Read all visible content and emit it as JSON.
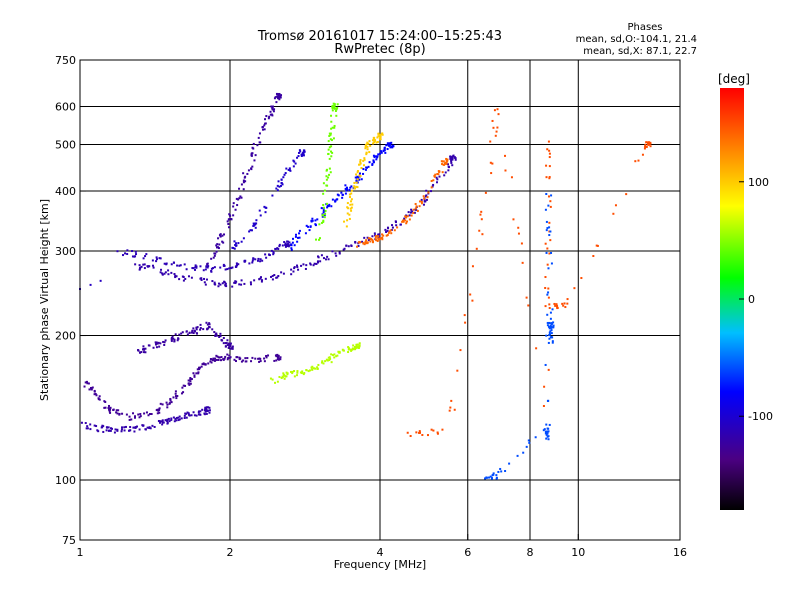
{
  "chart_data": {
    "type": "scatter",
    "title": "Tromsø 20161017 15:24:00–15:25:43",
    "subtitle": "RwPretec (8p)",
    "xlabel": "Frequency [MHz]",
    "ylabel": "Stationary phase Virtual Height [km]",
    "x_scale": "log",
    "y_scale": "log",
    "xlim": [
      1,
      16
    ],
    "ylim": [
      75,
      750
    ],
    "x_ticks": [
      1,
      2,
      4,
      6,
      8,
      10,
      16
    ],
    "y_ticks": [
      75,
      100,
      200,
      300,
      400,
      500,
      600,
      750
    ],
    "x_grid": [
      2,
      4,
      6,
      8,
      10
    ],
    "y_grid": [
      100,
      200,
      300,
      400,
      500,
      600
    ],
    "grid": true,
    "colorbar": {
      "label": "[deg]",
      "range": [
        -180,
        180
      ],
      "ticks": [
        100,
        0,
        -100
      ]
    },
    "phases": {
      "title": "Phases",
      "line_o": "mean, sd,O:-104.1, 21.4",
      "line_x": "mean, sd,X:  87.1, 22.7"
    },
    "series": [
      {
        "trace": [
          [
            1.02,
            130
          ],
          [
            1.1,
            128
          ],
          [
            1.2,
            127
          ],
          [
            1.3,
            128
          ],
          [
            1.4,
            130
          ],
          [
            1.5,
            133
          ],
          [
            1.6,
            135
          ],
          [
            1.7,
            137
          ],
          [
            1.8,
            140
          ]
        ],
        "phase": -120
      },
      {
        "trace": [
          [
            1.02,
            160
          ],
          [
            1.08,
            150
          ],
          [
            1.15,
            140
          ],
          [
            1.25,
            135
          ],
          [
            1.4,
            138
          ],
          [
            1.5,
            145
          ],
          [
            1.6,
            155
          ],
          [
            1.7,
            165
          ],
          [
            1.8,
            175
          ],
          [
            1.9,
            180
          ],
          [
            2.0,
            180
          ],
          [
            2.2,
            178
          ],
          [
            2.5,
            180
          ]
        ],
        "phase": -130
      },
      {
        "trace": [
          [
            1.3,
            185
          ],
          [
            1.4,
            190
          ],
          [
            1.5,
            195
          ],
          [
            1.6,
            200
          ],
          [
            1.7,
            205
          ],
          [
            1.8,
            210
          ],
          [
            1.9,
            200
          ],
          [
            2.0,
            190
          ]
        ],
        "phase": -125
      },
      {
        "trace": [
          [
            1.3,
            280
          ],
          [
            1.4,
            275
          ],
          [
            1.6,
            265
          ],
          [
            1.8,
            258
          ],
          [
            2.0,
            255
          ],
          [
            2.3,
            262
          ],
          [
            2.6,
            270
          ],
          [
            2.9,
            282
          ],
          [
            3.2,
            295
          ],
          [
            3.6,
            310
          ],
          [
            4.0,
            325
          ],
          [
            4.4,
            345
          ],
          [
            4.8,
            375
          ],
          [
            5.2,
            420
          ],
          [
            5.6,
            470
          ]
        ],
        "phase": -120
      },
      {
        "trace": [
          [
            1.2,
            300
          ],
          [
            1.4,
            290
          ],
          [
            1.6,
            280
          ],
          [
            1.8,
            275
          ],
          [
            2.0,
            278
          ],
          [
            2.2,
            285
          ],
          [
            2.4,
            295
          ],
          [
            2.6,
            310
          ]
        ],
        "phase": -115
      },
      {
        "trace": [
          [
            1.8,
            280
          ],
          [
            1.9,
            310
          ],
          [
            2.0,
            350
          ],
          [
            2.1,
            400
          ],
          [
            2.2,
            460
          ],
          [
            2.3,
            520
          ],
          [
            2.4,
            580
          ],
          [
            2.5,
            630
          ]
        ],
        "phase": -125
      },
      {
        "trace": [
          [
            2.0,
            300
          ],
          [
            2.2,
            330
          ],
          [
            2.4,
            380
          ],
          [
            2.6,
            440
          ],
          [
            2.8,
            480
          ]
        ],
        "phase": -105
      },
      {
        "trace": [
          [
            2.6,
            300
          ],
          [
            2.8,
            330
          ],
          [
            3.0,
            350
          ],
          [
            3.2,
            380
          ],
          [
            3.4,
            400
          ],
          [
            3.6,
            420
          ],
          [
            3.8,
            450
          ],
          [
            4.0,
            480
          ],
          [
            4.2,
            500
          ]
        ],
        "phase": -80
      },
      {
        "trace": [
          [
            3.0,
            310
          ],
          [
            3.1,
            380
          ],
          [
            3.15,
            450
          ],
          [
            3.2,
            520
          ],
          [
            3.25,
            600
          ]
        ],
        "phase": 40
      },
      {
        "trace": [
          [
            3.4,
            330
          ],
          [
            3.5,
            380
          ],
          [
            3.6,
            430
          ],
          [
            3.7,
            470
          ],
          [
            3.8,
            500
          ],
          [
            4.0,
            520
          ]
        ],
        "phase": 100
      },
      {
        "trace": [
          [
            3.6,
            310
          ],
          [
            3.8,
            315
          ],
          [
            4.0,
            320
          ],
          [
            4.3,
            335
          ],
          [
            4.6,
            355
          ],
          [
            5.0,
            400
          ],
          [
            5.4,
            460
          ]
        ],
        "phase": 140
      },
      {
        "trace": [
          [
            2.4,
            160
          ],
          [
            2.6,
            165
          ],
          [
            2.8,
            168
          ],
          [
            3.0,
            172
          ],
          [
            3.2,
            180
          ],
          [
            3.4,
            185
          ],
          [
            3.6,
            190
          ]
        ],
        "phase": 60
      },
      {
        "trace": [
          [
            1.0,
            250
          ],
          [
            1.05,
            255
          ],
          [
            1.1,
            260
          ]
        ],
        "phase": -110
      },
      {
        "trace": [
          [
            4.4,
            125
          ],
          [
            5.5,
            126
          ],
          [
            6.4,
            340
          ],
          [
            6.9,
            620
          ],
          [
            8.6,
            140
          ],
          [
            8.7,
            520
          ],
          [
            8.7,
            230
          ],
          [
            9.4,
            230
          ],
          [
            13.8,
            500
          ]
        ],
        "phase": 150
      },
      {
        "trace": [
          [
            6.5,
            102
          ],
          [
            6.9,
            102
          ],
          [
            8.7,
            130
          ],
          [
            8.7,
            120
          ],
          [
            8.7,
            400
          ],
          [
            8.8,
            190
          ],
          [
            8.8,
            210
          ]
        ],
        "phase": -60
      }
    ]
  }
}
